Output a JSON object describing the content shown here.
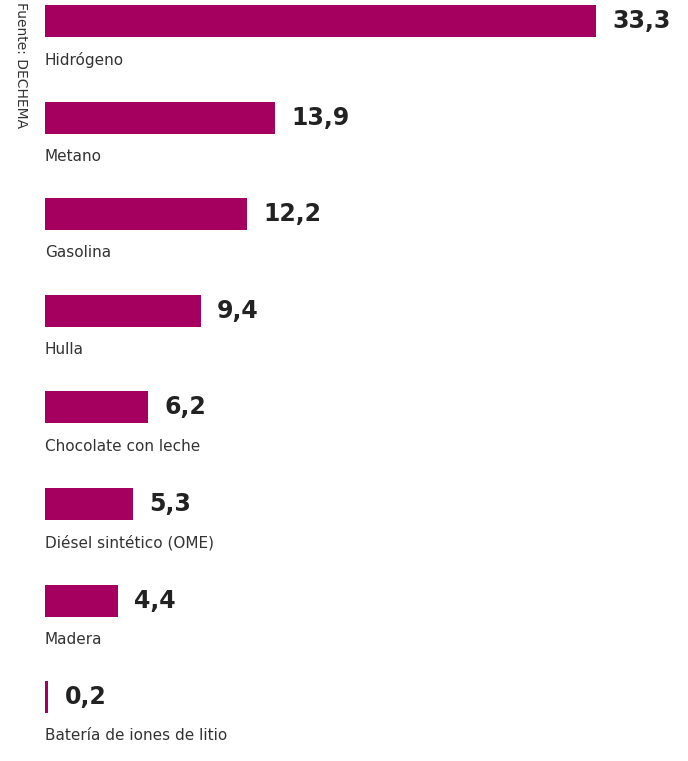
{
  "chart_data": {
    "type": "bar",
    "orientation": "horizontal",
    "source": "Fuente: DECHEMA",
    "categories": [
      "Hidrógeno",
      "Metano",
      "Gasolina",
      "Hulla",
      "Chocolate con leche",
      "Diésel sintético (OME)",
      "Madera",
      "Batería de iones de litio"
    ],
    "values": [
      33.3,
      13.9,
      12.2,
      9.4,
      6.2,
      5.3,
      4.4,
      0.2
    ],
    "value_labels": [
      "33,3",
      "13,9",
      "12,2",
      "9,4",
      "6,2",
      "5,3",
      "4,4",
      "0,2"
    ],
    "data_labels": true,
    "xlim": [
      0,
      33.3
    ],
    "tick_labels": false,
    "grid": false,
    "color": "#a50060"
  }
}
